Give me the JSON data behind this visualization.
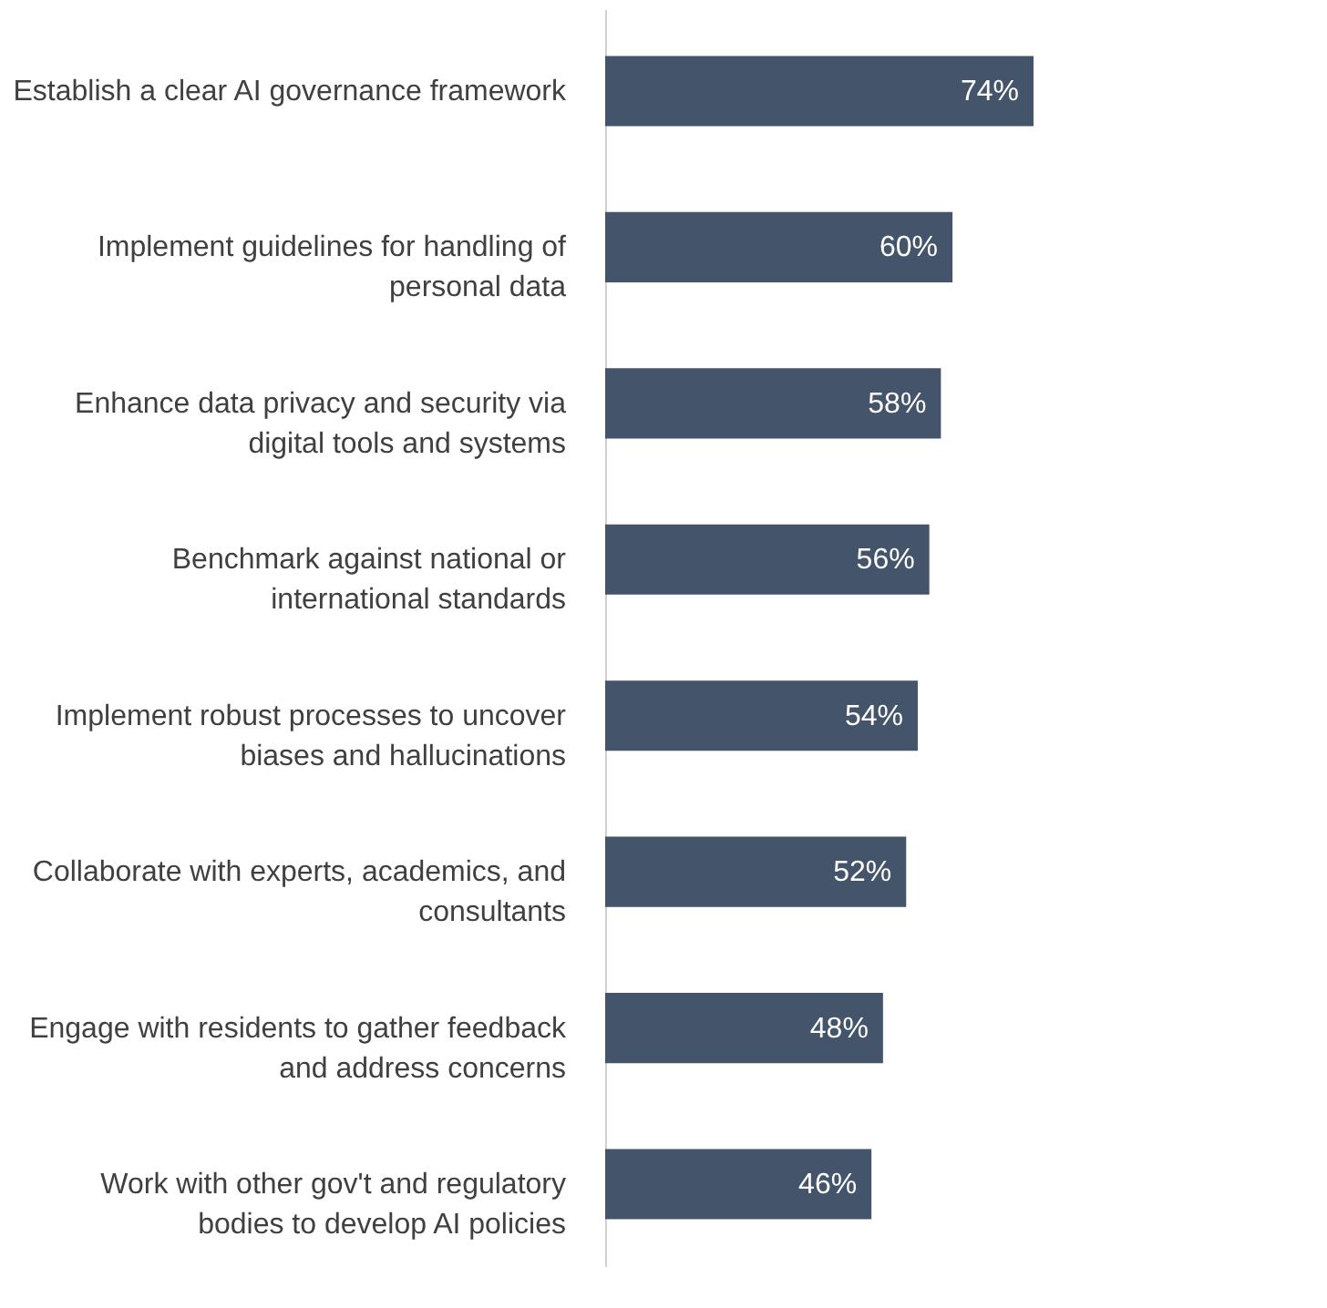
{
  "chart_data": {
    "type": "bar",
    "orientation": "horizontal",
    "grid": false,
    "categories": [
      "Establish a clear AI governance framework",
      "Implement guidelines for handling of personal data",
      "Enhance data privacy and security via digital tools and systems",
      "Benchmark against national or international standards",
      "Implement robust processes to uncover biases and hallucinations",
      "Collaborate with experts, academics, and consultants",
      "Engage with residents to gather feedback and address concerns",
      "Work with other gov't and regulatory bodies to develop AI policies"
    ],
    "values": [
      74,
      60,
      58,
      56,
      54,
      52,
      48,
      46
    ],
    "value_labels": [
      "74%",
      "60%",
      "58%",
      "56%",
      "54%",
      "52%",
      "48%",
      "46%"
    ],
    "color": "#44546a"
  }
}
